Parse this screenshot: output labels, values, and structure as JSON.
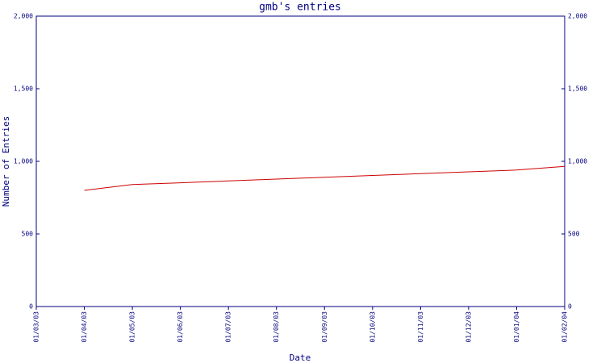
{
  "chart_data": {
    "type": "line",
    "title": "gmb's entries",
    "x_label": "Date",
    "y_label": "Number of Entries",
    "categories": [
      "01/03/03",
      "01/04/03",
      "01/05/03",
      "01/06/03",
      "01/07/03",
      "01/08/03",
      "01/09/03",
      "01/10/03",
      "01/11/03",
      "01/12/03",
      "01/01/04",
      "01/02/04"
    ],
    "values": [
      null,
      800,
      840,
      852,
      865,
      878,
      890,
      903,
      915,
      928,
      940,
      965
    ],
    "color": "#cc0000",
    "axis_color": "#000080",
    "ylim": [
      0,
      2000
    ],
    "yticks": [
      0,
      500,
      {
        "value": 1000,
        "label": "1,000"
      },
      {
        "value": 1500,
        "label": "1,500"
      },
      {
        "value": 2000,
        "label": "2,000"
      }
    ]
  }
}
